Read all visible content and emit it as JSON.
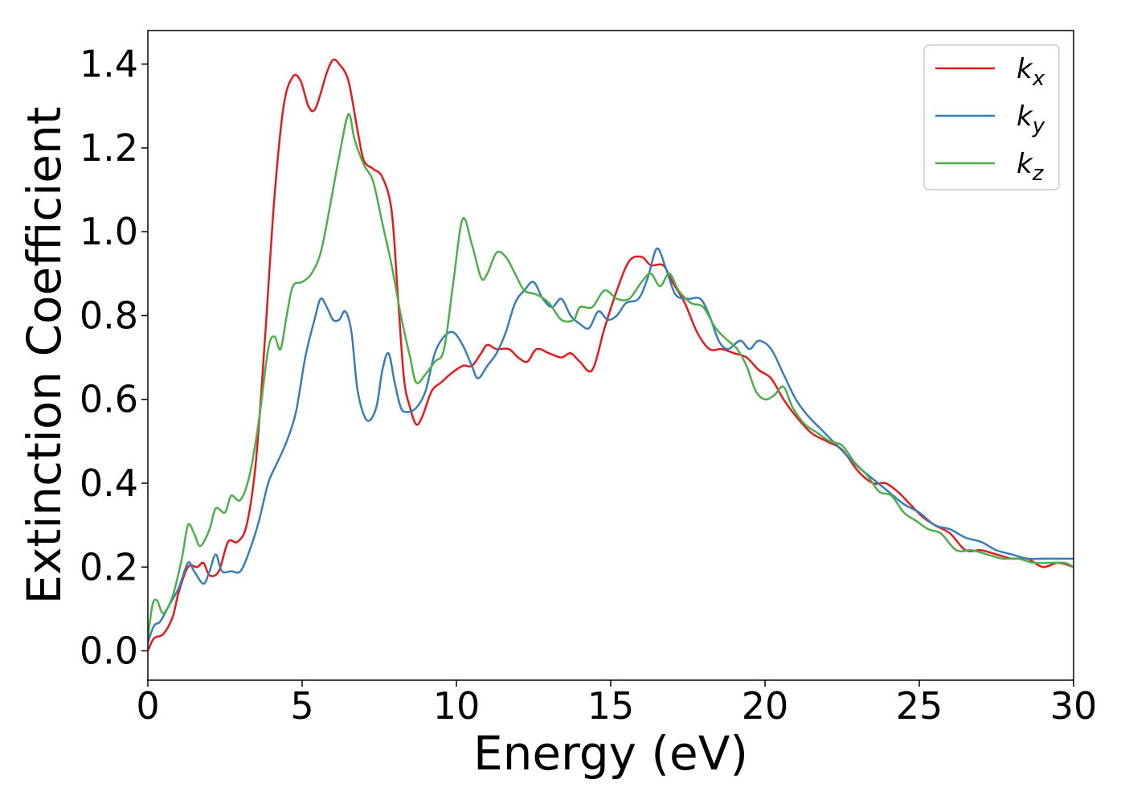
{
  "chart_data": {
    "type": "line",
    "xlabel": "Energy (eV)",
    "ylabel": "Extinction Coefficient",
    "xlim": [
      0,
      30
    ],
    "ylim": [
      -0.07,
      1.48
    ],
    "x_ticks": [
      0,
      5,
      10,
      15,
      20,
      25,
      30
    ],
    "x_tick_labels": [
      "0",
      "5",
      "10",
      "15",
      "20",
      "25",
      "30"
    ],
    "y_ticks": [
      0.0,
      0.2,
      0.4,
      0.6,
      0.8,
      1.0,
      1.2,
      1.4
    ],
    "y_tick_labels": [
      "0.0",
      "0.2",
      "0.4",
      "0.6",
      "0.8",
      "1.0",
      "1.2",
      "1.4"
    ],
    "grid": false,
    "legend_position": "top-right",
    "series": [
      {
        "name": "k",
        "subscript": "x",
        "color": "#e41a1c",
        "points": [
          [
            0,
            0.0
          ],
          [
            0.2,
            0.03
          ],
          [
            0.5,
            0.04
          ],
          [
            0.8,
            0.08
          ],
          [
            1.0,
            0.14
          ],
          [
            1.3,
            0.2
          ],
          [
            1.6,
            0.2
          ],
          [
            1.8,
            0.21
          ],
          [
            2.0,
            0.18
          ],
          [
            2.3,
            0.19
          ],
          [
            2.6,
            0.26
          ],
          [
            2.9,
            0.26
          ],
          [
            3.2,
            0.3
          ],
          [
            3.5,
            0.45
          ],
          [
            3.8,
            0.75
          ],
          [
            4.1,
            1.08
          ],
          [
            4.4,
            1.3
          ],
          [
            4.7,
            1.37
          ],
          [
            4.95,
            1.36
          ],
          [
            5.2,
            1.3
          ],
          [
            5.4,
            1.29
          ],
          [
            5.6,
            1.33
          ],
          [
            5.8,
            1.38
          ],
          [
            6.0,
            1.41
          ],
          [
            6.2,
            1.4
          ],
          [
            6.5,
            1.36
          ],
          [
            6.8,
            1.24
          ],
          [
            7.0,
            1.17
          ],
          [
            7.3,
            1.15
          ],
          [
            7.6,
            1.13
          ],
          [
            7.9,
            1.05
          ],
          [
            8.1,
            0.85
          ],
          [
            8.3,
            0.65
          ],
          [
            8.5,
            0.58
          ],
          [
            8.7,
            0.54
          ],
          [
            8.9,
            0.56
          ],
          [
            9.2,
            0.62
          ],
          [
            9.5,
            0.64
          ],
          [
            9.8,
            0.66
          ],
          [
            10.2,
            0.68
          ],
          [
            10.5,
            0.68
          ],
          [
            10.8,
            0.71
          ],
          [
            11.0,
            0.73
          ],
          [
            11.3,
            0.72
          ],
          [
            11.7,
            0.72
          ],
          [
            12.0,
            0.7
          ],
          [
            12.3,
            0.69
          ],
          [
            12.6,
            0.72
          ],
          [
            13.0,
            0.71
          ],
          [
            13.4,
            0.7
          ],
          [
            13.7,
            0.71
          ],
          [
            14.0,
            0.69
          ],
          [
            14.4,
            0.67
          ],
          [
            14.8,
            0.77
          ],
          [
            15.2,
            0.86
          ],
          [
            15.6,
            0.93
          ],
          [
            16.0,
            0.94
          ],
          [
            16.3,
            0.92
          ],
          [
            16.7,
            0.92
          ],
          [
            17.0,
            0.88
          ],
          [
            17.4,
            0.83
          ],
          [
            17.8,
            0.76
          ],
          [
            18.2,
            0.72
          ],
          [
            18.6,
            0.72
          ],
          [
            19.0,
            0.71
          ],
          [
            19.4,
            0.7
          ],
          [
            19.8,
            0.67
          ],
          [
            20.2,
            0.65
          ],
          [
            20.6,
            0.6
          ],
          [
            21.0,
            0.56
          ],
          [
            21.5,
            0.52
          ],
          [
            22.0,
            0.5
          ],
          [
            22.5,
            0.48
          ],
          [
            23.0,
            0.43
          ],
          [
            23.5,
            0.4
          ],
          [
            23.9,
            0.4
          ],
          [
            24.3,
            0.38
          ],
          [
            24.7,
            0.35
          ],
          [
            25.1,
            0.32
          ],
          [
            25.5,
            0.3
          ],
          [
            26.0,
            0.28
          ],
          [
            26.5,
            0.24
          ],
          [
            27.0,
            0.24
          ],
          [
            27.5,
            0.23
          ],
          [
            28.0,
            0.22
          ],
          [
            28.5,
            0.22
          ],
          [
            29.0,
            0.2
          ],
          [
            29.5,
            0.21
          ],
          [
            30.0,
            0.2
          ]
        ]
      },
      {
        "name": "k",
        "subscript": "y",
        "color": "#377eb8",
        "points": [
          [
            0,
            0.02
          ],
          [
            0.2,
            0.06
          ],
          [
            0.4,
            0.07
          ],
          [
            0.7,
            0.11
          ],
          [
            1.0,
            0.15
          ],
          [
            1.3,
            0.21
          ],
          [
            1.5,
            0.19
          ],
          [
            1.8,
            0.16
          ],
          [
            2.0,
            0.19
          ],
          [
            2.2,
            0.23
          ],
          [
            2.4,
            0.19
          ],
          [
            2.7,
            0.19
          ],
          [
            3.0,
            0.19
          ],
          [
            3.3,
            0.24
          ],
          [
            3.6,
            0.31
          ],
          [
            3.9,
            0.4
          ],
          [
            4.2,
            0.45
          ],
          [
            4.5,
            0.5
          ],
          [
            4.8,
            0.57
          ],
          [
            5.1,
            0.7
          ],
          [
            5.4,
            0.79
          ],
          [
            5.6,
            0.84
          ],
          [
            5.8,
            0.82
          ],
          [
            6.0,
            0.79
          ],
          [
            6.2,
            0.79
          ],
          [
            6.4,
            0.81
          ],
          [
            6.6,
            0.76
          ],
          [
            6.8,
            0.62
          ],
          [
            7.1,
            0.55
          ],
          [
            7.4,
            0.58
          ],
          [
            7.6,
            0.67
          ],
          [
            7.8,
            0.71
          ],
          [
            8.0,
            0.64
          ],
          [
            8.2,
            0.58
          ],
          [
            8.4,
            0.57
          ],
          [
            8.7,
            0.58
          ],
          [
            9.0,
            0.62
          ],
          [
            9.3,
            0.71
          ],
          [
            9.6,
            0.75
          ],
          [
            9.9,
            0.76
          ],
          [
            10.2,
            0.73
          ],
          [
            10.5,
            0.68
          ],
          [
            10.7,
            0.65
          ],
          [
            11.0,
            0.68
          ],
          [
            11.3,
            0.71
          ],
          [
            11.6,
            0.76
          ],
          [
            11.9,
            0.83
          ],
          [
            12.2,
            0.86
          ],
          [
            12.5,
            0.88
          ],
          [
            12.8,
            0.84
          ],
          [
            13.1,
            0.82
          ],
          [
            13.4,
            0.84
          ],
          [
            13.7,
            0.8
          ],
          [
            14.0,
            0.78
          ],
          [
            14.3,
            0.77
          ],
          [
            14.6,
            0.81
          ],
          [
            14.9,
            0.79
          ],
          [
            15.2,
            0.8
          ],
          [
            15.5,
            0.83
          ],
          [
            15.9,
            0.84
          ],
          [
            16.2,
            0.89
          ],
          [
            16.5,
            0.96
          ],
          [
            16.8,
            0.91
          ],
          [
            17.1,
            0.85
          ],
          [
            17.5,
            0.84
          ],
          [
            17.9,
            0.84
          ],
          [
            18.2,
            0.8
          ],
          [
            18.5,
            0.74
          ],
          [
            18.8,
            0.72
          ],
          [
            19.2,
            0.74
          ],
          [
            19.5,
            0.72
          ],
          [
            19.8,
            0.74
          ],
          [
            20.2,
            0.72
          ],
          [
            20.6,
            0.66
          ],
          [
            21.0,
            0.6
          ],
          [
            21.4,
            0.56
          ],
          [
            21.8,
            0.53
          ],
          [
            22.2,
            0.5
          ],
          [
            22.6,
            0.47
          ],
          [
            23.0,
            0.44
          ],
          [
            23.5,
            0.41
          ],
          [
            24.0,
            0.38
          ],
          [
            24.5,
            0.35
          ],
          [
            25.0,
            0.33
          ],
          [
            25.5,
            0.3
          ],
          [
            26.0,
            0.29
          ],
          [
            26.5,
            0.27
          ],
          [
            27.0,
            0.26
          ],
          [
            27.5,
            0.24
          ],
          [
            28.0,
            0.23
          ],
          [
            28.5,
            0.22
          ],
          [
            29.0,
            0.22
          ],
          [
            29.5,
            0.22
          ],
          [
            30.0,
            0.22
          ]
        ]
      },
      {
        "name": "k",
        "subscript": "z",
        "color": "#4daf4a",
        "points": [
          [
            0,
            0.03
          ],
          [
            0.15,
            0.11
          ],
          [
            0.3,
            0.12
          ],
          [
            0.5,
            0.09
          ],
          [
            0.8,
            0.13
          ],
          [
            1.1,
            0.22
          ],
          [
            1.3,
            0.3
          ],
          [
            1.5,
            0.28
          ],
          [
            1.7,
            0.25
          ],
          [
            2.0,
            0.29
          ],
          [
            2.2,
            0.34
          ],
          [
            2.5,
            0.33
          ],
          [
            2.7,
            0.37
          ],
          [
            3.0,
            0.36
          ],
          [
            3.3,
            0.42
          ],
          [
            3.6,
            0.55
          ],
          [
            3.9,
            0.72
          ],
          [
            4.1,
            0.75
          ],
          [
            4.3,
            0.72
          ],
          [
            4.5,
            0.8
          ],
          [
            4.7,
            0.87
          ],
          [
            5.0,
            0.88
          ],
          [
            5.3,
            0.9
          ],
          [
            5.6,
            0.95
          ],
          [
            5.9,
            1.06
          ],
          [
            6.2,
            1.18
          ],
          [
            6.5,
            1.28
          ],
          [
            6.7,
            1.22
          ],
          [
            7.0,
            1.16
          ],
          [
            7.3,
            1.12
          ],
          [
            7.6,
            1.02
          ],
          [
            7.9,
            0.92
          ],
          [
            8.2,
            0.8
          ],
          [
            8.5,
            0.7
          ],
          [
            8.7,
            0.64
          ],
          [
            9.0,
            0.66
          ],
          [
            9.3,
            0.69
          ],
          [
            9.6,
            0.72
          ],
          [
            9.9,
            0.88
          ],
          [
            10.2,
            1.03
          ],
          [
            10.5,
            0.97
          ],
          [
            10.8,
            0.89
          ],
          [
            11.0,
            0.9
          ],
          [
            11.3,
            0.95
          ],
          [
            11.6,
            0.94
          ],
          [
            11.9,
            0.9
          ],
          [
            12.2,
            0.86
          ],
          [
            12.6,
            0.85
          ],
          [
            13.0,
            0.83
          ],
          [
            13.4,
            0.79
          ],
          [
            13.8,
            0.79
          ],
          [
            14.0,
            0.82
          ],
          [
            14.4,
            0.82
          ],
          [
            14.8,
            0.86
          ],
          [
            15.2,
            0.84
          ],
          [
            15.6,
            0.84
          ],
          [
            16.0,
            0.88
          ],
          [
            16.3,
            0.9
          ],
          [
            16.6,
            0.87
          ],
          [
            16.9,
            0.9
          ],
          [
            17.2,
            0.86
          ],
          [
            17.6,
            0.83
          ],
          [
            18.0,
            0.82
          ],
          [
            18.4,
            0.77
          ],
          [
            18.8,
            0.74
          ],
          [
            19.1,
            0.72
          ],
          [
            19.4,
            0.68
          ],
          [
            19.7,
            0.62
          ],
          [
            20.0,
            0.6
          ],
          [
            20.3,
            0.61
          ],
          [
            20.6,
            0.63
          ],
          [
            20.9,
            0.58
          ],
          [
            21.3,
            0.54
          ],
          [
            21.7,
            0.52
          ],
          [
            22.1,
            0.5
          ],
          [
            22.5,
            0.49
          ],
          [
            22.9,
            0.45
          ],
          [
            23.3,
            0.42
          ],
          [
            23.7,
            0.38
          ],
          [
            24.1,
            0.37
          ],
          [
            24.5,
            0.33
          ],
          [
            24.9,
            0.31
          ],
          [
            25.3,
            0.29
          ],
          [
            25.7,
            0.28
          ],
          [
            26.2,
            0.24
          ],
          [
            26.7,
            0.24
          ],
          [
            27.2,
            0.23
          ],
          [
            27.7,
            0.22
          ],
          [
            28.2,
            0.22
          ],
          [
            28.7,
            0.21
          ],
          [
            29.2,
            0.21
          ],
          [
            29.7,
            0.21
          ],
          [
            30.0,
            0.2
          ]
        ]
      }
    ]
  }
}
